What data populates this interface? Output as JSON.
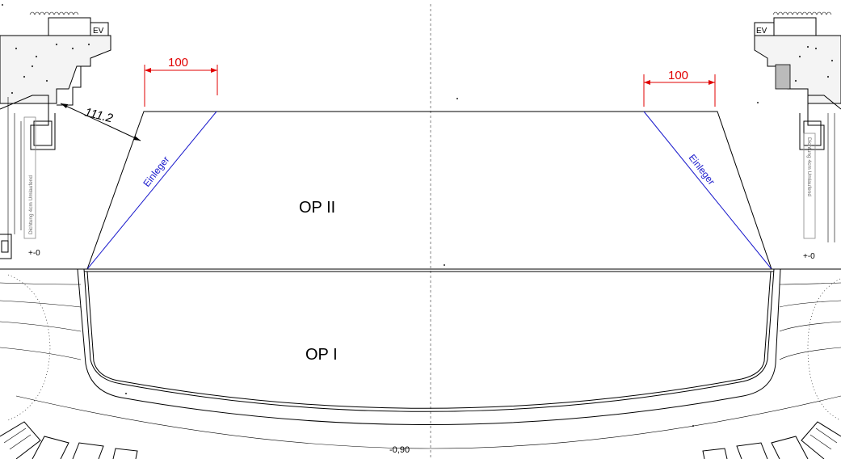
{
  "labels": {
    "op2": "OP II",
    "op1": "OP I",
    "einleger_left": "Einleger",
    "einleger_right": "Einleger",
    "dim_left": "100",
    "dim_right": "100",
    "dim_angle": "111.2",
    "level_left": "+-0",
    "level_right": "+-0",
    "level_bottom": "-0,90",
    "ev_left": "EV",
    "ev_right": "EV",
    "side_note_left": "Dichtung 4cm Umlaufend",
    "side_note_right": "Dichtung 4cm Umlaufend"
  },
  "colors": {
    "dimension": "#e00000",
    "einleger": "#1a1acc",
    "lines": "#000000"
  }
}
